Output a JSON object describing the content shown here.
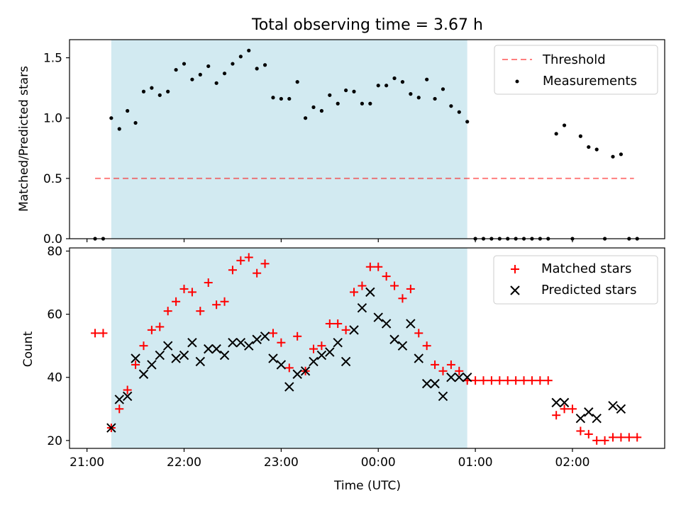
{
  "title": "Total observing time = 3.67 h",
  "chart_data": [
    {
      "type": "scatter",
      "ylabel": "Matched/Predicted stars",
      "ylim": [
        0,
        1.65
      ],
      "xlim_hours": [
        20.82,
        26.95
      ],
      "yticks": [
        0.0,
        0.5,
        1.0,
        1.5
      ],
      "ytick_labels": [
        "0.0",
        "0.5",
        "1.0",
        "1.5"
      ],
      "shaded_span": [
        "21:15",
        "00:55"
      ],
      "shade_color": "#add8e6",
      "legend_placement": "top-right",
      "legend": [
        "Threshold",
        "Measurements"
      ],
      "threshold": {
        "name": "Threshold",
        "y": 0.5,
        "x_range": [
          "21:05",
          "02:38"
        ],
        "color": "#ff7f7f"
      },
      "series": [
        {
          "name": "Measurements",
          "color": "#000000",
          "marker": "dot",
          "x": [
            "21:05",
            "21:10",
            "21:15",
            "21:20",
            "21:25",
            "21:30",
            "21:35",
            "21:40",
            "21:45",
            "21:50",
            "21:55",
            "22:00",
            "22:05",
            "22:10",
            "22:15",
            "22:20",
            "22:25",
            "22:30",
            "22:35",
            "22:40",
            "22:45",
            "22:50",
            "22:55",
            "23:00",
            "23:05",
            "23:10",
            "23:15",
            "23:20",
            "23:25",
            "23:30",
            "23:35",
            "23:40",
            "23:45",
            "23:50",
            "23:55",
            "00:00",
            "00:05",
            "00:10",
            "00:15",
            "00:20",
            "00:25",
            "00:30",
            "00:35",
            "00:40",
            "00:45",
            "00:50",
            "00:55",
            "01:00",
            "01:05",
            "01:10",
            "01:15",
            "01:20",
            "01:25",
            "01:30",
            "01:35",
            "01:40",
            "01:45",
            "01:50",
            "01:55",
            "02:00",
            "02:05",
            "02:10",
            "02:15",
            "02:20",
            "02:25",
            "02:30",
            "02:35",
            "02:40"
          ],
          "y": [
            0.0,
            0.0,
            1.0,
            0.91,
            1.06,
            0.96,
            1.22,
            1.25,
            1.19,
            1.22,
            1.4,
            1.45,
            1.32,
            1.36,
            1.43,
            1.29,
            1.37,
            1.45,
            1.51,
            1.56,
            1.41,
            1.44,
            1.17,
            1.16,
            1.16,
            1.3,
            1.0,
            1.09,
            1.06,
            1.19,
            1.12,
            1.23,
            1.22,
            1.12,
            1.12,
            1.27,
            1.27,
            1.33,
            1.3,
            1.2,
            1.17,
            1.32,
            1.16,
            1.24,
            1.1,
            1.05,
            0.97,
            0.0,
            0.0,
            0.0,
            0.0,
            0.0,
            0.0,
            0.0,
            0.0,
            0.0,
            0.0,
            0.87,
            0.94,
            0.0,
            0.85,
            0.76,
            0.74,
            0.0,
            0.68,
            0.7,
            0.0,
            0.0
          ]
        }
      ]
    },
    {
      "type": "scatter",
      "xlabel": "Time (UTC)",
      "ylabel": "Count",
      "ylim": [
        17.5,
        81
      ],
      "xlim_hours": [
        20.82,
        26.95
      ],
      "yticks": [
        20,
        40,
        60,
        80
      ],
      "ytick_labels": [
        "20",
        "40",
        "60",
        "80"
      ],
      "xticks_hours": [
        21,
        22,
        23,
        24,
        25,
        26
      ],
      "xtick_labels": [
        "21:00",
        "22:00",
        "23:00",
        "00:00",
        "01:00",
        "02:00"
      ],
      "shaded_span": [
        "21:15",
        "00:55"
      ],
      "shade_color": "#add8e6",
      "legend_placement": "top-right",
      "legend": [
        "Matched stars",
        "Predicted stars"
      ],
      "series": [
        {
          "name": "Matched stars",
          "color": "#ff0000",
          "marker": "plus",
          "x": [
            "21:05",
            "21:10",
            "21:15",
            "21:20",
            "21:25",
            "21:30",
            "21:35",
            "21:40",
            "21:45",
            "21:50",
            "21:55",
            "22:00",
            "22:05",
            "22:10",
            "22:15",
            "22:20",
            "22:25",
            "22:30",
            "22:35",
            "22:40",
            "22:45",
            "22:50",
            "22:55",
            "23:00",
            "23:05",
            "23:10",
            "23:15",
            "23:20",
            "23:25",
            "23:30",
            "23:35",
            "23:40",
            "23:45",
            "23:50",
            "23:55",
            "00:00",
            "00:05",
            "00:10",
            "00:15",
            "00:20",
            "00:25",
            "00:30",
            "00:35",
            "00:40",
            "00:45",
            "00:50",
            "00:55",
            "01:00",
            "01:05",
            "01:10",
            "01:15",
            "01:20",
            "01:25",
            "01:30",
            "01:35",
            "01:40",
            "01:45",
            "01:50",
            "01:55",
            "02:00",
            "02:05",
            "02:10",
            "02:15",
            "02:20",
            "02:25",
            "02:30",
            "02:35",
            "02:40"
          ],
          "y": [
            54,
            54,
            24,
            30,
            36,
            44,
            50,
            55,
            56,
            61,
            64,
            68,
            67,
            61,
            70,
            63,
            64,
            74,
            77,
            78,
            73,
            76,
            54,
            51,
            43,
            53,
            42,
            49,
            50,
            57,
            57,
            55,
            67,
            69,
            75,
            75,
            72,
            69,
            65,
            68,
            54,
            50,
            44,
            42,
            44,
            42,
            39,
            39,
            39,
            39,
            39,
            39,
            39,
            39,
            39,
            39,
            39,
            28,
            30,
            30,
            23,
            22,
            20,
            20,
            21,
            21,
            21,
            21
          ]
        },
        {
          "name": "Predicted stars",
          "color": "#000000",
          "marker": "x",
          "x": [
            "21:15",
            "21:20",
            "21:25",
            "21:30",
            "21:35",
            "21:40",
            "21:45",
            "21:50",
            "21:55",
            "22:00",
            "22:05",
            "22:10",
            "22:15",
            "22:20",
            "22:25",
            "22:30",
            "22:35",
            "22:40",
            "22:45",
            "22:50",
            "22:55",
            "23:00",
            "23:05",
            "23:10",
            "23:15",
            "23:20",
            "23:25",
            "23:30",
            "23:35",
            "23:40",
            "23:45",
            "23:50",
            "23:55",
            "00:00",
            "00:05",
            "00:10",
            "00:15",
            "00:20",
            "00:25",
            "00:30",
            "00:35",
            "00:40",
            "00:45",
            "00:50",
            "00:55",
            "01:50",
            "01:55",
            "02:05",
            "02:10",
            "02:15",
            "02:25",
            "02:30"
          ],
          "y": [
            24,
            33,
            34,
            46,
            41,
            44,
            47,
            50,
            46,
            47,
            51,
            45,
            49,
            49,
            47,
            51,
            51,
            50,
            52,
            53,
            46,
            44,
            37,
            41,
            42,
            45,
            47,
            48,
            51,
            45,
            55,
            62,
            67,
            59,
            57,
            52,
            50,
            57,
            46,
            38,
            38,
            34,
            40,
            40,
            40,
            32,
            32,
            27,
            29,
            27,
            31,
            30
          ]
        }
      ]
    }
  ]
}
